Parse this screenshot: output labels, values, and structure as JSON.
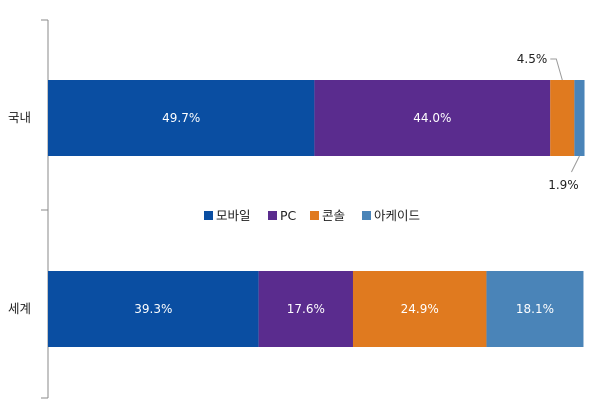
{
  "chart_data": {
    "type": "bar",
    "orientation": "horizontal",
    "stacked": true,
    "percent_stacked": true,
    "categories": [
      "국내",
      "세계"
    ],
    "series": [
      {
        "name": "모바일",
        "values": [
          49.7,
          39.3
        ],
        "color": "#0a4ea2"
      },
      {
        "name": "PC",
        "values": [
          44.0,
          17.6
        ],
        "color": "#5a2c8e"
      },
      {
        "name": "콘솔",
        "values": [
          4.5,
          24.9
        ],
        "color": "#e07a1f"
      },
      {
        "name": "아케이드",
        "values": [
          1.9,
          18.1
        ],
        "color": "#4a84b8"
      }
    ],
    "data_labels": [
      [
        "49.7%",
        "44.0%",
        "4.5%",
        "1.9%"
      ],
      [
        "39.3%",
        "17.6%",
        "24.9%",
        "18.1%"
      ]
    ],
    "xlim": [
      0,
      100
    ],
    "grid": false,
    "legend_position": "center"
  }
}
